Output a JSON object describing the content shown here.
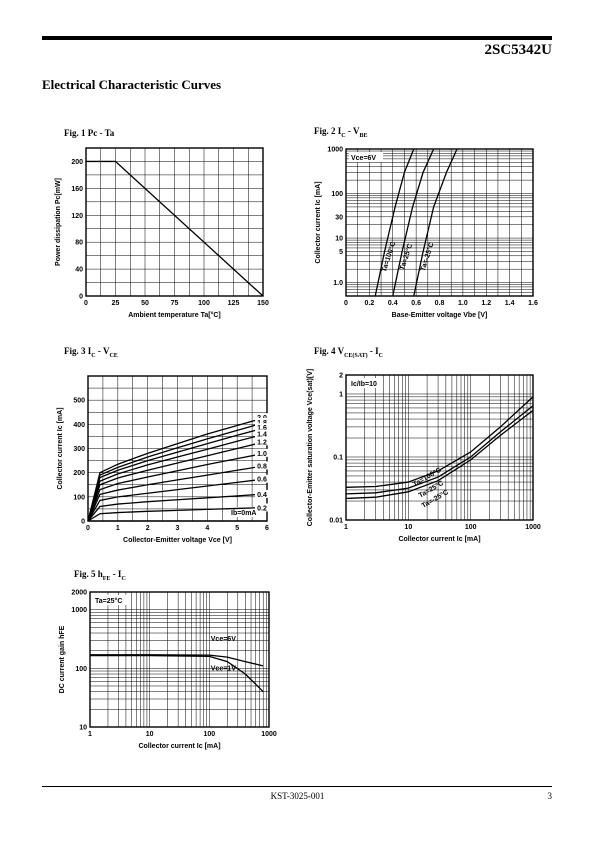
{
  "header": {
    "part_number": "2SC5342U"
  },
  "section_title": "Electrical Characteristic Curves",
  "footer": {
    "doc_number": "KST-3025-001",
    "page": "3"
  },
  "figures": {
    "fig1": {
      "caption_pre": "Fig. 1 Pc - Ta"
    },
    "fig2": {
      "caption_pre": "Fig. 2 I",
      "sub1": "C",
      "mid": " - V",
      "sub2": "BE"
    },
    "fig3": {
      "caption_pre": "Fig. 3 I",
      "sub1": "C",
      "mid": " - V",
      "sub2": "CE"
    },
    "fig4": {
      "caption_pre": "Fig. 4 V",
      "sub1": "CE(SAT)",
      "mid": " - I",
      "sub2": "C"
    },
    "fig5": {
      "caption_pre": "Fig. 5 h",
      "sub1": "FE",
      "mid": " - I",
      "sub2": "C"
    }
  },
  "chart_data": [
    {
      "type": "line",
      "id": "fig1",
      "xlabel": "Ambient temperature Ta[°C]",
      "ylabel": "Power dissipation Pc[mW]",
      "xlim": [
        0,
        150
      ],
      "ylim": [
        0,
        220
      ],
      "x_ticks": [
        0,
        25,
        50,
        75,
        100,
        125,
        150
      ],
      "y_ticks": [
        0,
        40,
        80,
        120,
        160,
        200
      ],
      "grid": true,
      "series": [
        {
          "x": [
            0,
            25,
            150
          ],
          "y": [
            200,
            200,
            0
          ]
        }
      ]
    },
    {
      "type": "line",
      "id": "fig2",
      "xlabel": "Base-Emitter voltage Vbe [V]",
      "ylabel": "Collector current Ic [mA]",
      "xlim": [
        0,
        1.6
      ],
      "ylim": [
        0.5,
        1000
      ],
      "y_scale": "log",
      "x_ticks": [
        0,
        0.2,
        0.4,
        0.6,
        0.8,
        1.0,
        1.2,
        1.4,
        1.6
      ],
      "x_tick_labels": [
        "0",
        "0.2",
        "0.4",
        "0.6",
        "0.8",
        "1.0",
        "1.2",
        "1.4",
        "1.6"
      ],
      "y_ticks": [
        1.0,
        5,
        10,
        30,
        100,
        1000
      ],
      "y_tick_labels": [
        "1.0",
        "5",
        "10",
        "30",
        "100",
        "1000"
      ],
      "annotation": "Vce=6V",
      "grid": true,
      "series": [
        {
          "name": "Ta=100°C",
          "x": [
            0.25,
            0.33,
            0.42,
            0.5,
            0.58
          ],
          "y": [
            0.5,
            5,
            50,
            300,
            1000
          ]
        },
        {
          "name": "Ta=25°C",
          "x": [
            0.4,
            0.48,
            0.57,
            0.66,
            0.75
          ],
          "y": [
            0.5,
            5,
            50,
            300,
            1000
          ]
        },
        {
          "name": "Ta=-25°C",
          "x": [
            0.58,
            0.66,
            0.75,
            0.86,
            0.95
          ],
          "y": [
            0.5,
            5,
            50,
            300,
            1000
          ]
        }
      ]
    },
    {
      "type": "line",
      "id": "fig3",
      "xlabel": "Collector-Emitter voltage Vce [V]",
      "ylabel": "Collector current Ic [mA]",
      "xlim": [
        0,
        6
      ],
      "ylim": [
        0,
        600
      ],
      "x_ticks": [
        0,
        1,
        2,
        3,
        4,
        5,
        6
      ],
      "y_ticks": [
        0,
        100,
        200,
        300,
        400,
        500
      ],
      "annotation": "Ib=0mA",
      "grid": true,
      "x": [
        0.4,
        1,
        2,
        3,
        4,
        5,
        6
      ],
      "series": [
        {
          "name": "2.0",
          "values": [
            200,
            235,
            280,
            320,
            360,
            395,
            430
          ]
        },
        {
          "name": "1.8",
          "values": [
            190,
            222,
            265,
            303,
            340,
            375,
            410
          ]
        },
        {
          "name": "1.6",
          "values": [
            180,
            210,
            250,
            285,
            320,
            355,
            388
          ]
        },
        {
          "name": "1.4",
          "values": [
            165,
            195,
            232,
            265,
            297,
            330,
            362
          ]
        },
        {
          "name": "1.2",
          "values": [
            150,
            178,
            210,
            240,
            270,
            300,
            330
          ]
        },
        {
          "name": "1.0",
          "values": [
            130,
            155,
            182,
            208,
            234,
            258,
            282
          ]
        },
        {
          "name": "0.8",
          "values": [
            110,
            128,
            150,
            170,
            190,
            210,
            230
          ]
        },
        {
          "name": "0.6",
          "values": [
            85,
            100,
            115,
            130,
            145,
            160,
            175
          ]
        },
        {
          "name": "0.4",
          "values": [
            60,
            70,
            80,
            88,
            96,
            104,
            112
          ]
        },
        {
          "name": "0.2",
          "values": [
            30,
            35,
            40,
            44,
            48,
            52,
            56
          ]
        },
        {
          "values": [
            0,
            0,
            0,
            0,
            0,
            0,
            0
          ]
        }
      ]
    },
    {
      "type": "line",
      "id": "fig4",
      "xlabel": "Collector current Ic [mA]",
      "ylabel": "Collector-Emitter saturation voltage Vce(sat)[V]",
      "xlim": [
        1,
        1000
      ],
      "ylim": [
        0.01,
        2
      ],
      "x_scale": "log",
      "y_scale": "log",
      "x_ticks": [
        1,
        10,
        100,
        1000
      ],
      "y_ticks": [
        0.01,
        0.1,
        1,
        2
      ],
      "y_tick_labels": [
        "0.01",
        "0.1",
        "1",
        "2"
      ],
      "annotation": "Ic/Ib=10",
      "grid": true,
      "series": [
        {
          "name": "Ta=100°C",
          "x": [
            1,
            3,
            10,
            30,
            100,
            300,
            1000
          ],
          "y": [
            0.033,
            0.034,
            0.04,
            0.06,
            0.12,
            0.3,
            0.9
          ]
        },
        {
          "name": "Ta=25°C",
          "x": [
            1,
            3,
            10,
            30,
            100,
            300,
            1000
          ],
          "y": [
            0.026,
            0.027,
            0.032,
            0.048,
            0.1,
            0.25,
            0.65
          ]
        },
        {
          "name": "Ta=-25°C",
          "x": [
            1,
            3,
            10,
            30,
            100,
            300,
            1000
          ],
          "y": [
            0.022,
            0.023,
            0.028,
            0.042,
            0.09,
            0.22,
            0.55
          ]
        }
      ]
    },
    {
      "type": "line",
      "id": "fig5",
      "xlabel": "Collector current Ic [mA]",
      "ylabel": "DC current gain hFE",
      "xlim": [
        1,
        1000
      ],
      "ylim": [
        10,
        2000
      ],
      "x_scale": "log",
      "y_scale": "log",
      "x_ticks": [
        1,
        10,
        100,
        1000
      ],
      "y_ticks": [
        10,
        100,
        1000,
        2000
      ],
      "annotation": "Ta=25°C",
      "grid": true,
      "series": [
        {
          "name": "Vce=6V",
          "x": [
            1,
            10,
            100,
            200,
            400,
            800
          ],
          "y": [
            170,
            170,
            168,
            155,
            130,
            110
          ]
        },
        {
          "name": "Vce=1V",
          "x": [
            1,
            10,
            100,
            200,
            400,
            800
          ],
          "y": [
            165,
            165,
            160,
            130,
            80,
            40
          ]
        }
      ]
    }
  ]
}
